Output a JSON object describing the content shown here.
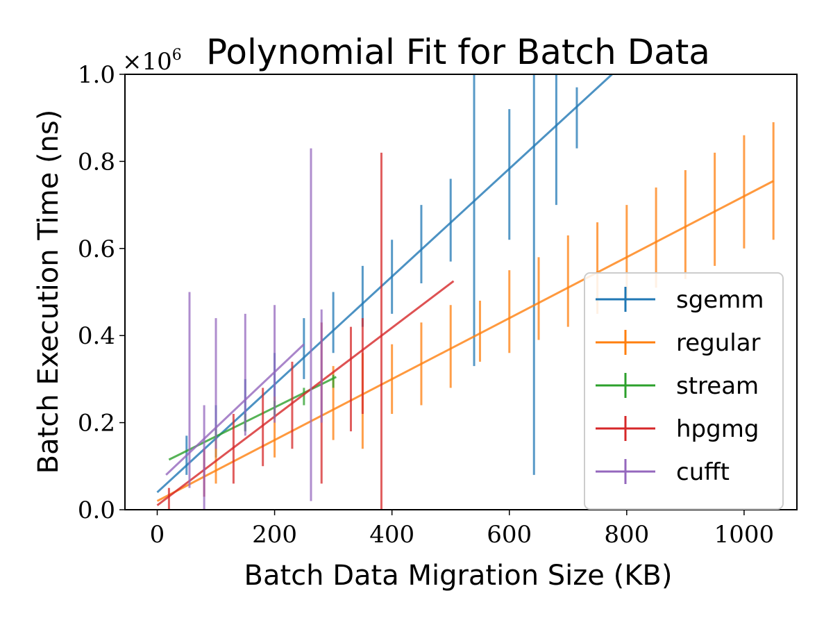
{
  "chart_data": {
    "type": "scatter",
    "title": "Polynomial Fit for Batch Data",
    "xlabel": "Batch Data Migration Size (KB)",
    "ylabel": "Batch Execution Time (ns)",
    "y_multiplier": "×10",
    "y_multiplier_exp": "6",
    "xlim": [
      -55,
      1090
    ],
    "ylim": [
      0,
      1.0
    ],
    "xticks": [
      0,
      200,
      400,
      600,
      800,
      1000
    ],
    "xtick_labels": [
      "0",
      "200",
      "400",
      "600",
      "800",
      "1000"
    ],
    "yticks": [
      0.0,
      0.2,
      0.4,
      0.6,
      0.8,
      1.0
    ],
    "ytick_labels": [
      "0.0",
      "0.2",
      "0.4",
      "0.6",
      "0.8",
      "1.0"
    ],
    "grid": false,
    "legend_position": "lower right",
    "series": [
      {
        "name": "sgemm",
        "color": "#1f77b4",
        "fit": [
          [
            0,
            0.04
          ],
          [
            775,
            1.0
          ]
        ],
        "points": [
          {
            "x": 50,
            "lo": 0.08,
            "hi": 0.17
          },
          {
            "x": 100,
            "lo": 0.12,
            "hi": 0.24
          },
          {
            "x": 150,
            "lo": 0.18,
            "hi": 0.3
          },
          {
            "x": 200,
            "lo": 0.22,
            "hi": 0.36
          },
          {
            "x": 250,
            "lo": 0.3,
            "hi": 0.44
          },
          {
            "x": 300,
            "lo": 0.36,
            "hi": 0.5
          },
          {
            "x": 350,
            "lo": 0.42,
            "hi": 0.56
          },
          {
            "x": 400,
            "lo": 0.45,
            "hi": 0.62
          },
          {
            "x": 450,
            "lo": 0.52,
            "hi": 0.7
          },
          {
            "x": 500,
            "lo": 0.57,
            "hi": 0.76
          },
          {
            "x": 540,
            "lo": 0.33,
            "hi": 1.0
          },
          {
            "x": 600,
            "lo": 0.62,
            "hi": 0.92
          },
          {
            "x": 642,
            "lo": 0.08,
            "hi": 1.0
          },
          {
            "x": 680,
            "lo": 0.7,
            "hi": 1.0
          },
          {
            "x": 715,
            "lo": 0.83,
            "hi": 0.97
          }
        ]
      },
      {
        "name": "regular",
        "color": "#ff7f0e",
        "fit": [
          [
            0,
            0.02
          ],
          [
            1050,
            0.755
          ]
        ],
        "points": [
          {
            "x": 100,
            "lo": 0.06,
            "hi": 0.16
          },
          {
            "x": 200,
            "lo": 0.12,
            "hi": 0.26
          },
          {
            "x": 300,
            "lo": 0.16,
            "hi": 0.33
          },
          {
            "x": 350,
            "lo": 0.14,
            "hi": 0.36
          },
          {
            "x": 400,
            "lo": 0.22,
            "hi": 0.38
          },
          {
            "x": 450,
            "lo": 0.24,
            "hi": 0.43
          },
          {
            "x": 500,
            "lo": 0.28,
            "hi": 0.47
          },
          {
            "x": 550,
            "lo": 0.34,
            "hi": 0.48
          },
          {
            "x": 600,
            "lo": 0.36,
            "hi": 0.55
          },
          {
            "x": 650,
            "lo": 0.39,
            "hi": 0.58
          },
          {
            "x": 700,
            "lo": 0.42,
            "hi": 0.63
          },
          {
            "x": 750,
            "lo": 0.45,
            "hi": 0.66
          },
          {
            "x": 800,
            "lo": 0.48,
            "hi": 0.7
          },
          {
            "x": 850,
            "lo": 0.51,
            "hi": 0.74
          },
          {
            "x": 900,
            "lo": 0.53,
            "hi": 0.78
          },
          {
            "x": 950,
            "lo": 0.56,
            "hi": 0.82
          },
          {
            "x": 1000,
            "lo": 0.6,
            "hi": 0.86
          },
          {
            "x": 1050,
            "lo": 0.62,
            "hi": 0.89
          }
        ]
      },
      {
        "name": "stream",
        "color": "#2ca02c",
        "fit": [
          [
            20,
            0.115
          ],
          [
            305,
            0.305
          ]
        ],
        "points": [
          {
            "x": 100,
            "lo": 0.16,
            "hi": 0.19
          },
          {
            "x": 150,
            "lo": 0.18,
            "hi": 0.22
          },
          {
            "x": 200,
            "lo": 0.21,
            "hi": 0.25
          },
          {
            "x": 250,
            "lo": 0.24,
            "hi": 0.28
          },
          {
            "x": 300,
            "lo": 0.28,
            "hi": 0.31
          }
        ]
      },
      {
        "name": "hpgmg",
        "color": "#d62728",
        "fit": [
          [
            0,
            0.01
          ],
          [
            505,
            0.525
          ]
        ],
        "points": [
          {
            "x": 20,
            "lo": 0.0,
            "hi": 0.05
          },
          {
            "x": 80,
            "lo": 0.03,
            "hi": 0.14
          },
          {
            "x": 130,
            "lo": 0.06,
            "hi": 0.22
          },
          {
            "x": 180,
            "lo": 0.1,
            "hi": 0.28
          },
          {
            "x": 230,
            "lo": 0.14,
            "hi": 0.34
          },
          {
            "x": 280,
            "lo": 0.06,
            "hi": 0.43
          },
          {
            "x": 330,
            "lo": 0.18,
            "hi": 0.42
          },
          {
            "x": 350,
            "lo": 0.22,
            "hi": 0.44
          },
          {
            "x": 382,
            "lo": 0.0,
            "hi": 0.82
          }
        ]
      },
      {
        "name": "cufft",
        "color": "#9467bd",
        "fit": [
          [
            15,
            0.08
          ],
          [
            250,
            0.38
          ]
        ],
        "points": [
          {
            "x": 55,
            "lo": 0.05,
            "hi": 0.5
          },
          {
            "x": 80,
            "lo": 0.0,
            "hi": 0.24
          },
          {
            "x": 100,
            "lo": 0.14,
            "hi": 0.44
          },
          {
            "x": 150,
            "lo": 0.17,
            "hi": 0.45
          },
          {
            "x": 200,
            "lo": 0.2,
            "hi": 0.47
          },
          {
            "x": 262,
            "lo": 0.02,
            "hi": 0.83
          },
          {
            "x": 280,
            "lo": 0.2,
            "hi": 0.46
          }
        ]
      }
    ]
  }
}
